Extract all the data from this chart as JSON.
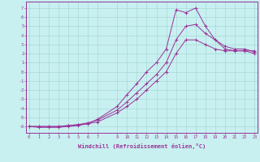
{
  "xlabel": "Windchill (Refroidissement éolien,°C)",
  "bg_color": "#c8f0f0",
  "line_color": "#993399",
  "grid_color": "#a8d8d8",
  "xlim": [
    -0.3,
    23.3
  ],
  "ylim": [
    -6.7,
    7.7
  ],
  "xtick_pos": [
    0,
    1,
    2,
    3,
    4,
    5,
    6,
    7,
    9,
    10,
    11,
    12,
    13,
    14,
    15,
    16,
    17,
    18,
    19,
    20,
    21,
    22,
    23
  ],
  "xtick_labels": [
    "0",
    "1",
    "2",
    "3",
    "4",
    "5",
    "6",
    "7",
    "9",
    "10",
    "11",
    "12",
    "13",
    "14",
    "15",
    "16",
    "17",
    "18",
    "19",
    "20",
    "21",
    "22",
    "23"
  ],
  "ytick_pos": [
    7,
    6,
    5,
    4,
    3,
    2,
    1,
    0,
    -1,
    -2,
    -3,
    -4,
    -5,
    -6
  ],
  "ytick_labels": [
    "7",
    "6",
    "5",
    "4",
    "3",
    "2",
    "1",
    "0",
    "-1",
    "-2",
    "-3",
    "-4",
    "-5",
    "-6"
  ],
  "line1_x": [
    0,
    1,
    2,
    3,
    4,
    5,
    6,
    7,
    9,
    10,
    11,
    12,
    13,
    14,
    15,
    16,
    17,
    18,
    19,
    20,
    21,
    22,
    23
  ],
  "line1_y": [
    -6,
    -6,
    -6,
    -6,
    -5.9,
    -5.8,
    -5.7,
    -5.5,
    -4.5,
    -3.8,
    -3.0,
    -2.0,
    -1.0,
    0.0,
    2.0,
    3.5,
    3.5,
    3.0,
    2.5,
    2.3,
    2.3,
    2.3,
    2.3
  ],
  "line2_x": [
    0,
    1,
    2,
    3,
    4,
    5,
    6,
    7,
    9,
    10,
    11,
    12,
    13,
    14,
    15,
    16,
    17,
    18,
    19,
    20,
    21,
    22,
    23
  ],
  "line2_y": [
    -6,
    -6,
    -6,
    -6,
    -5.9,
    -5.8,
    -5.6,
    -5.3,
    -4.2,
    -3.3,
    -2.3,
    -1.3,
    -0.3,
    1.0,
    3.5,
    5.0,
    5.2,
    4.2,
    3.5,
    2.5,
    2.3,
    2.3,
    2.0
  ],
  "line3_x": [
    0,
    1,
    2,
    3,
    4,
    5,
    6,
    7,
    9,
    10,
    11,
    12,
    13,
    14,
    15,
    16,
    17,
    18,
    19,
    20,
    21,
    22,
    23
  ],
  "line3_y": [
    -6,
    -6.1,
    -6.1,
    -6.1,
    -6.0,
    -5.9,
    -5.7,
    -5.2,
    -3.8,
    -2.5,
    -1.3,
    0.0,
    1.0,
    2.5,
    6.8,
    6.5,
    7.0,
    5.0,
    3.5,
    2.8,
    2.5,
    2.5,
    2.2
  ]
}
